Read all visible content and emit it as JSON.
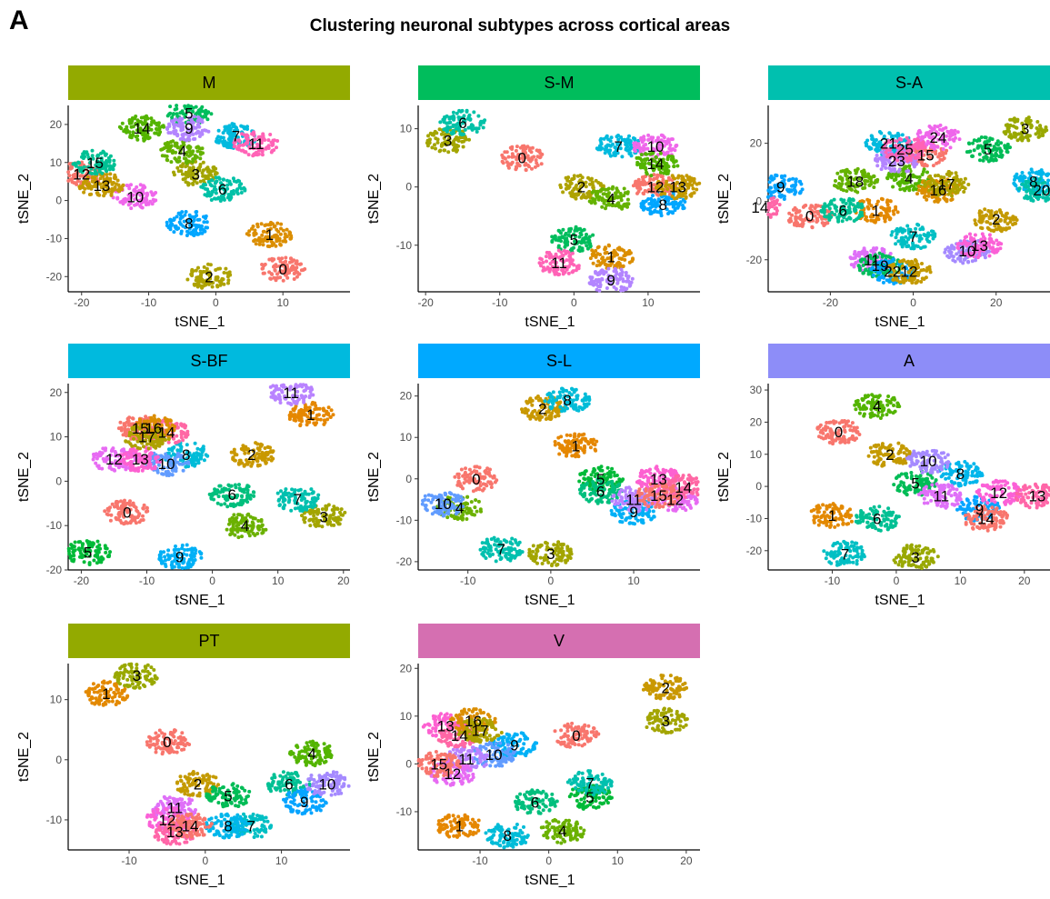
{
  "figure": {
    "panel_letter": "A",
    "title": "Clustering neuronal subtypes across cortical areas"
  },
  "chart_data": [
    {
      "type": "scatter",
      "facet": "M",
      "strip_color": "#93AA00",
      "xlabel": "tSNE_1",
      "ylabel": "tSNE_2",
      "xlim": [
        -22,
        20
      ],
      "ylim": [
        -24,
        25
      ],
      "xticks": [
        -20,
        -10,
        0,
        10
      ],
      "yticks": [
        -20,
        -10,
        0,
        10,
        20
      ],
      "clusters": [
        {
          "label": "0",
          "x": 10,
          "y": -18,
          "color": "#F8766D"
        },
        {
          "label": "1",
          "x": 8,
          "y": -9,
          "color": "#DB8E00"
        },
        {
          "label": "2",
          "x": -1,
          "y": -20,
          "color": "#AEA200"
        },
        {
          "label": "3",
          "x": -3,
          "y": 7,
          "color": "#A3A500"
        },
        {
          "label": "4",
          "x": -5,
          "y": 13,
          "color": "#64B200"
        },
        {
          "label": "5",
          "x": -4,
          "y": 23,
          "color": "#00BD5C"
        },
        {
          "label": "6",
          "x": 1,
          "y": 3,
          "color": "#00C1A7"
        },
        {
          "label": "7",
          "x": 3,
          "y": 17,
          "color": "#00BADE"
        },
        {
          "label": "8",
          "x": -4,
          "y": -6,
          "color": "#00A6FF"
        },
        {
          "label": "9",
          "x": -4,
          "y": 19,
          "color": "#B385FF"
        },
        {
          "label": "10",
          "x": -12,
          "y": 1,
          "color": "#EF67EB"
        },
        {
          "label": "11",
          "x": 6,
          "y": 15,
          "color": "#FF63B6"
        },
        {
          "label": "12",
          "x": -20,
          "y": 7,
          "color": "#F8766D"
        },
        {
          "label": "13",
          "x": -17,
          "y": 4,
          "color": "#C49A00"
        },
        {
          "label": "14",
          "x": -11,
          "y": 19,
          "color": "#53B400"
        },
        {
          "label": "15",
          "x": -18,
          "y": 10,
          "color": "#00C094"
        }
      ]
    },
    {
      "type": "scatter",
      "facet": "S-M",
      "strip_color": "#00BD5C",
      "xlabel": "tSNE_1",
      "ylabel": "tSNE_2",
      "xlim": [
        -21,
        17
      ],
      "ylim": [
        -18,
        14
      ],
      "xticks": [
        -20,
        -10,
        0,
        10
      ],
      "yticks": [
        -10,
        0,
        10
      ],
      "clusters": [
        {
          "label": "0",
          "x": -7,
          "y": 5,
          "color": "#F8766D"
        },
        {
          "label": "1",
          "x": 5,
          "y": -12,
          "color": "#DB8E00"
        },
        {
          "label": "2",
          "x": 1,
          "y": 0,
          "color": "#AEA200"
        },
        {
          "label": "3",
          "x": -17,
          "y": 8,
          "color": "#A3A500"
        },
        {
          "label": "4",
          "x": 5,
          "y": -2,
          "color": "#64B200"
        },
        {
          "label": "5",
          "x": 0,
          "y": -9,
          "color": "#00BD5C"
        },
        {
          "label": "6",
          "x": -15,
          "y": 11,
          "color": "#00C1A7"
        },
        {
          "label": "7",
          "x": 6,
          "y": 7,
          "color": "#00BADE"
        },
        {
          "label": "8",
          "x": 12,
          "y": -3,
          "color": "#00A6FF"
        },
        {
          "label": "9",
          "x": 5,
          "y": -16,
          "color": "#B385FF"
        },
        {
          "label": "10",
          "x": 11,
          "y": 7,
          "color": "#EF67EB"
        },
        {
          "label": "11",
          "x": -2,
          "y": -13,
          "color": "#FF63B6"
        },
        {
          "label": "12",
          "x": 11,
          "y": 0,
          "color": "#F8766D"
        },
        {
          "label": "13",
          "x": 14,
          "y": 0,
          "color": "#C49A00"
        },
        {
          "label": "14",
          "x": 11,
          "y": 4,
          "color": "#53B400"
        }
      ]
    },
    {
      "type": "scatter",
      "facet": "S-A",
      "strip_color": "#00C0AF",
      "xlabel": "tSNE_1",
      "ylabel": "tSNE_2",
      "xlim": [
        -35,
        33
      ],
      "ylim": [
        -31,
        33
      ],
      "xticks": [
        -20,
        0,
        20
      ],
      "yticks": [
        -20,
        0,
        20
      ],
      "clusters": [
        {
          "label": "0",
          "x": -25,
          "y": -5,
          "color": "#F8766D"
        },
        {
          "label": "1",
          "x": -9,
          "y": -3,
          "color": "#E38900"
        },
        {
          "label": "2",
          "x": 20,
          "y": -6,
          "color": "#C49A00"
        },
        {
          "label": "3",
          "x": 27,
          "y": 25,
          "color": "#99A800"
        },
        {
          "label": "4",
          "x": -1,
          "y": 8,
          "color": "#53B400"
        },
        {
          "label": "5",
          "x": 18,
          "y": 18,
          "color": "#00BC56"
        },
        {
          "label": "6",
          "x": -17,
          "y": -3,
          "color": "#00C094"
        },
        {
          "label": "7",
          "x": 0,
          "y": -12,
          "color": "#00BFC4"
        },
        {
          "label": "8",
          "x": 29,
          "y": 7,
          "color": "#00B6EB"
        },
        {
          "label": "9",
          "x": -32,
          "y": 5,
          "color": "#06A4FF"
        },
        {
          "label": "10",
          "x": 13,
          "y": -17,
          "color": "#A58AFF"
        },
        {
          "label": "11",
          "x": -10,
          "y": -20,
          "color": "#DF70F8"
        },
        {
          "label": "13",
          "x": 16,
          "y": -15,
          "color": "#FB61D7"
        },
        {
          "label": "14",
          "x": -37,
          "y": -2,
          "color": "#FF66A8"
        },
        {
          "label": "15",
          "x": 3,
          "y": 16,
          "color": "#F8766D"
        },
        {
          "label": "16",
          "x": 6,
          "y": 4,
          "color": "#DB8E00"
        },
        {
          "label": "17",
          "x": 8,
          "y": 6,
          "color": "#AEA200"
        },
        {
          "label": "18",
          "x": -14,
          "y": 7,
          "color": "#64B200"
        },
        {
          "label": "19",
          "x": -8,
          "y": -22,
          "color": "#00BD5C"
        },
        {
          "label": "20",
          "x": 31,
          "y": 4,
          "color": "#00C1A7"
        },
        {
          "label": "21",
          "x": -6,
          "y": 20,
          "color": "#00BADE"
        },
        {
          "label": "22",
          "x": -5,
          "y": -24,
          "color": "#00A6FF"
        },
        {
          "label": "23",
          "x": -4,
          "y": 14,
          "color": "#B385FF"
        },
        {
          "label": "24",
          "x": 6,
          "y": 22,
          "color": "#EF67EB"
        },
        {
          "label": "25",
          "x": -2,
          "y": 18,
          "color": "#FF63B6"
        },
        {
          "label": "12",
          "x": -1,
          "y": -24,
          "color": "#C49A00"
        }
      ]
    },
    {
      "type": "scatter",
      "facet": "S-BF",
      "strip_color": "#00BADE",
      "xlabel": "tSNE_1",
      "ylabel": "tSNE_2",
      "xlim": [
        -22,
        21
      ],
      "ylim": [
        -20,
        22
      ],
      "xticks": [
        -20,
        -10,
        0,
        10,
        20
      ],
      "yticks": [
        -20,
        -10,
        0,
        10,
        20
      ],
      "clusters": [
        {
          "label": "0",
          "x": -13,
          "y": -7,
          "color": "#F8766D"
        },
        {
          "label": "1",
          "x": 15,
          "y": 15,
          "color": "#E58700"
        },
        {
          "label": "2",
          "x": 6,
          "y": 6,
          "color": "#C99800"
        },
        {
          "label": "3",
          "x": 17,
          "y": -8,
          "color": "#A3A500"
        },
        {
          "label": "4",
          "x": 5,
          "y": -10,
          "color": "#6BB100"
        },
        {
          "label": "5",
          "x": -19,
          "y": -16,
          "color": "#00BA38"
        },
        {
          "label": "6",
          "x": 3,
          "y": -3,
          "color": "#00BF7D"
        },
        {
          "label": "7",
          "x": 13,
          "y": -4,
          "color": "#00C0AF"
        },
        {
          "label": "8",
          "x": -4,
          "y": 6,
          "color": "#00BCD8"
        },
        {
          "label": "9",
          "x": -5,
          "y": -17,
          "color": "#00B0F6"
        },
        {
          "label": "10",
          "x": -7,
          "y": 4,
          "color": "#619CFF"
        },
        {
          "label": "11",
          "x": 12,
          "y": 20,
          "color": "#B983FF"
        },
        {
          "label": "12",
          "x": -15,
          "y": 5,
          "color": "#E76BF3"
        },
        {
          "label": "13",
          "x": -11,
          "y": 5,
          "color": "#FD61D1"
        },
        {
          "label": "14",
          "x": -7,
          "y": 11,
          "color": "#FF67A4"
        },
        {
          "label": "15",
          "x": -11,
          "y": 12,
          "color": "#F8766D"
        },
        {
          "label": "16",
          "x": -9,
          "y": 12,
          "color": "#DB8E00"
        },
        {
          "label": "17",
          "x": -10,
          "y": 10,
          "color": "#AEA200"
        }
      ]
    },
    {
      "type": "scatter",
      "facet": "S-L",
      "strip_color": "#00A9FF",
      "xlabel": "tSNE_1",
      "ylabel": "tSNE_2",
      "xlim": [
        -16,
        18
      ],
      "ylim": [
        -22,
        23
      ],
      "xticks": [
        -10,
        0,
        10
      ],
      "yticks": [
        -20,
        -10,
        0,
        10,
        20
      ],
      "clusters": [
        {
          "label": "0",
          "x": -9,
          "y": 0,
          "color": "#F8766D"
        },
        {
          "label": "1",
          "x": 3,
          "y": 8,
          "color": "#E58700"
        },
        {
          "label": "2",
          "x": -1,
          "y": 17,
          "color": "#C99800"
        },
        {
          "label": "3",
          "x": 0,
          "y": -18,
          "color": "#A3A500"
        },
        {
          "label": "4",
          "x": -11,
          "y": -7,
          "color": "#6BB100"
        },
        {
          "label": "5",
          "x": 6,
          "y": 0,
          "color": "#00BA38"
        },
        {
          "label": "6",
          "x": 6,
          "y": -3,
          "color": "#00BF7D"
        },
        {
          "label": "7",
          "x": -6,
          "y": -17,
          "color": "#00C0AF"
        },
        {
          "label": "8",
          "x": 2,
          "y": 19,
          "color": "#00BCD8"
        },
        {
          "label": "9",
          "x": 10,
          "y": -8,
          "color": "#00B0F6"
        },
        {
          "label": "10",
          "x": -13,
          "y": -6,
          "color": "#619CFF"
        },
        {
          "label": "11",
          "x": 10,
          "y": -5,
          "color": "#B983FF"
        },
        {
          "label": "12",
          "x": 15,
          "y": -5,
          "color": "#E76BF3"
        },
        {
          "label": "13",
          "x": 13,
          "y": 0,
          "color": "#FD61D1"
        },
        {
          "label": "14",
          "x": 16,
          "y": -2,
          "color": "#FF67A4"
        },
        {
          "label": "15",
          "x": 13,
          "y": -4,
          "color": "#F8766D"
        }
      ]
    },
    {
      "type": "scatter",
      "facet": "A",
      "strip_color": "#8D8DF8",
      "xlabel": "tSNE_1",
      "ylabel": "tSNE_2",
      "xlim": [
        -20,
        24
      ],
      "ylim": [
        -26,
        32
      ],
      "xticks": [
        -10,
        0,
        10,
        20
      ],
      "yticks": [
        -20,
        -10,
        0,
        10,
        20,
        30
      ],
      "clusters": [
        {
          "label": "0",
          "x": -9,
          "y": 17,
          "color": "#F8766D"
        },
        {
          "label": "1",
          "x": -10,
          "y": -9,
          "color": "#E38900"
        },
        {
          "label": "2",
          "x": -1,
          "y": 10,
          "color": "#C49A00"
        },
        {
          "label": "3",
          "x": 3,
          "y": -22,
          "color": "#99A800"
        },
        {
          "label": "4",
          "x": -3,
          "y": 25,
          "color": "#53B400"
        },
        {
          "label": "5",
          "x": 3,
          "y": 1,
          "color": "#00BC56"
        },
        {
          "label": "6",
          "x": -3,
          "y": -10,
          "color": "#00C094"
        },
        {
          "label": "7",
          "x": -8,
          "y": -21,
          "color": "#00BFC4"
        },
        {
          "label": "8",
          "x": 10,
          "y": 4,
          "color": "#00B6EB"
        },
        {
          "label": "9",
          "x": 13,
          "y": -7,
          "color": "#06A4FF"
        },
        {
          "label": "10",
          "x": 5,
          "y": 8,
          "color": "#A58AFF"
        },
        {
          "label": "11",
          "x": 7,
          "y": -3,
          "color": "#DF70F8"
        },
        {
          "label": "12",
          "x": 16,
          "y": -2,
          "color": "#FB61D7"
        },
        {
          "label": "13",
          "x": 22,
          "y": -3,
          "color": "#FF66A8"
        },
        {
          "label": "14",
          "x": 14,
          "y": -10,
          "color": "#F8766D"
        }
      ]
    },
    {
      "type": "scatter",
      "facet": "PT",
      "strip_color": "#93AA00",
      "xlabel": "tSNE_1",
      "ylabel": "tSNE_2",
      "xlim": [
        -18,
        19
      ],
      "ylim": [
        -15,
        16
      ],
      "xticks": [
        -10,
        0,
        10
      ],
      "yticks": [
        -10,
        0,
        10
      ],
      "clusters": [
        {
          "label": "0",
          "x": -5,
          "y": 3,
          "color": "#F8766D"
        },
        {
          "label": "1",
          "x": -13,
          "y": 11,
          "color": "#E38900"
        },
        {
          "label": "2",
          "x": -1,
          "y": -4,
          "color": "#C49A00"
        },
        {
          "label": "3",
          "x": -9,
          "y": 14,
          "color": "#99A800"
        },
        {
          "label": "4",
          "x": 14,
          "y": 1,
          "color": "#53B400"
        },
        {
          "label": "5",
          "x": 3,
          "y": -6,
          "color": "#00BC56"
        },
        {
          "label": "6",
          "x": 11,
          "y": -4,
          "color": "#00C094"
        },
        {
          "label": "7",
          "x": 6,
          "y": -11,
          "color": "#00BFC4"
        },
        {
          "label": "8",
          "x": 3,
          "y": -11,
          "color": "#00B6EB"
        },
        {
          "label": "9",
          "x": 13,
          "y": -7,
          "color": "#06A4FF"
        },
        {
          "label": "10",
          "x": 16,
          "y": -4,
          "color": "#A58AFF"
        },
        {
          "label": "11",
          "x": -4,
          "y": -8,
          "color": "#DF70F8"
        },
        {
          "label": "12",
          "x": -5,
          "y": -10,
          "color": "#FB61D7"
        },
        {
          "label": "13",
          "x": -4,
          "y": -12,
          "color": "#FF66A8"
        },
        {
          "label": "14",
          "x": -2,
          "y": -11,
          "color": "#F8766D"
        }
      ]
    },
    {
      "type": "scatter",
      "facet": "V",
      "strip_color": "#D56FB1",
      "xlabel": "tSNE_1",
      "ylabel": "tSNE_2",
      "xlim": [
        -19,
        22
      ],
      "ylim": [
        -18,
        21
      ],
      "xticks": [
        -10,
        0,
        10,
        20
      ],
      "yticks": [
        -10,
        0,
        10,
        20
      ],
      "clusters": [
        {
          "label": "0",
          "x": 4,
          "y": 6,
          "color": "#F8766D"
        },
        {
          "label": "1",
          "x": -13,
          "y": -13,
          "color": "#E58700"
        },
        {
          "label": "2",
          "x": 17,
          "y": 16,
          "color": "#C99800"
        },
        {
          "label": "3",
          "x": 17,
          "y": 9,
          "color": "#A3A500"
        },
        {
          "label": "4",
          "x": 2,
          "y": -14,
          "color": "#6BB100"
        },
        {
          "label": "5",
          "x": 6,
          "y": -7,
          "color": "#00BA38"
        },
        {
          "label": "6",
          "x": -2,
          "y": -8,
          "color": "#00BF7D"
        },
        {
          "label": "7",
          "x": 6,
          "y": -4,
          "color": "#00C0AF"
        },
        {
          "label": "8",
          "x": -6,
          "y": -15,
          "color": "#00BCD8"
        },
        {
          "label": "9",
          "x": -5,
          "y": 4,
          "color": "#00B0F6"
        },
        {
          "label": "10",
          "x": -8,
          "y": 2,
          "color": "#619CFF"
        },
        {
          "label": "11",
          "x": -12,
          "y": 1,
          "color": "#B983FF"
        },
        {
          "label": "12",
          "x": -14,
          "y": -2,
          "color": "#E76BF3"
        },
        {
          "label": "13",
          "x": -15,
          "y": 8,
          "color": "#FD61D1"
        },
        {
          "label": "14",
          "x": -13,
          "y": 6,
          "color": "#FF67A4"
        },
        {
          "label": "15",
          "x": -16,
          "y": 0,
          "color": "#F8766D"
        },
        {
          "label": "16",
          "x": -11,
          "y": 9,
          "color": "#DB8E00"
        },
        {
          "label": "17",
          "x": -10,
          "y": 7,
          "color": "#AEA200"
        }
      ]
    }
  ]
}
